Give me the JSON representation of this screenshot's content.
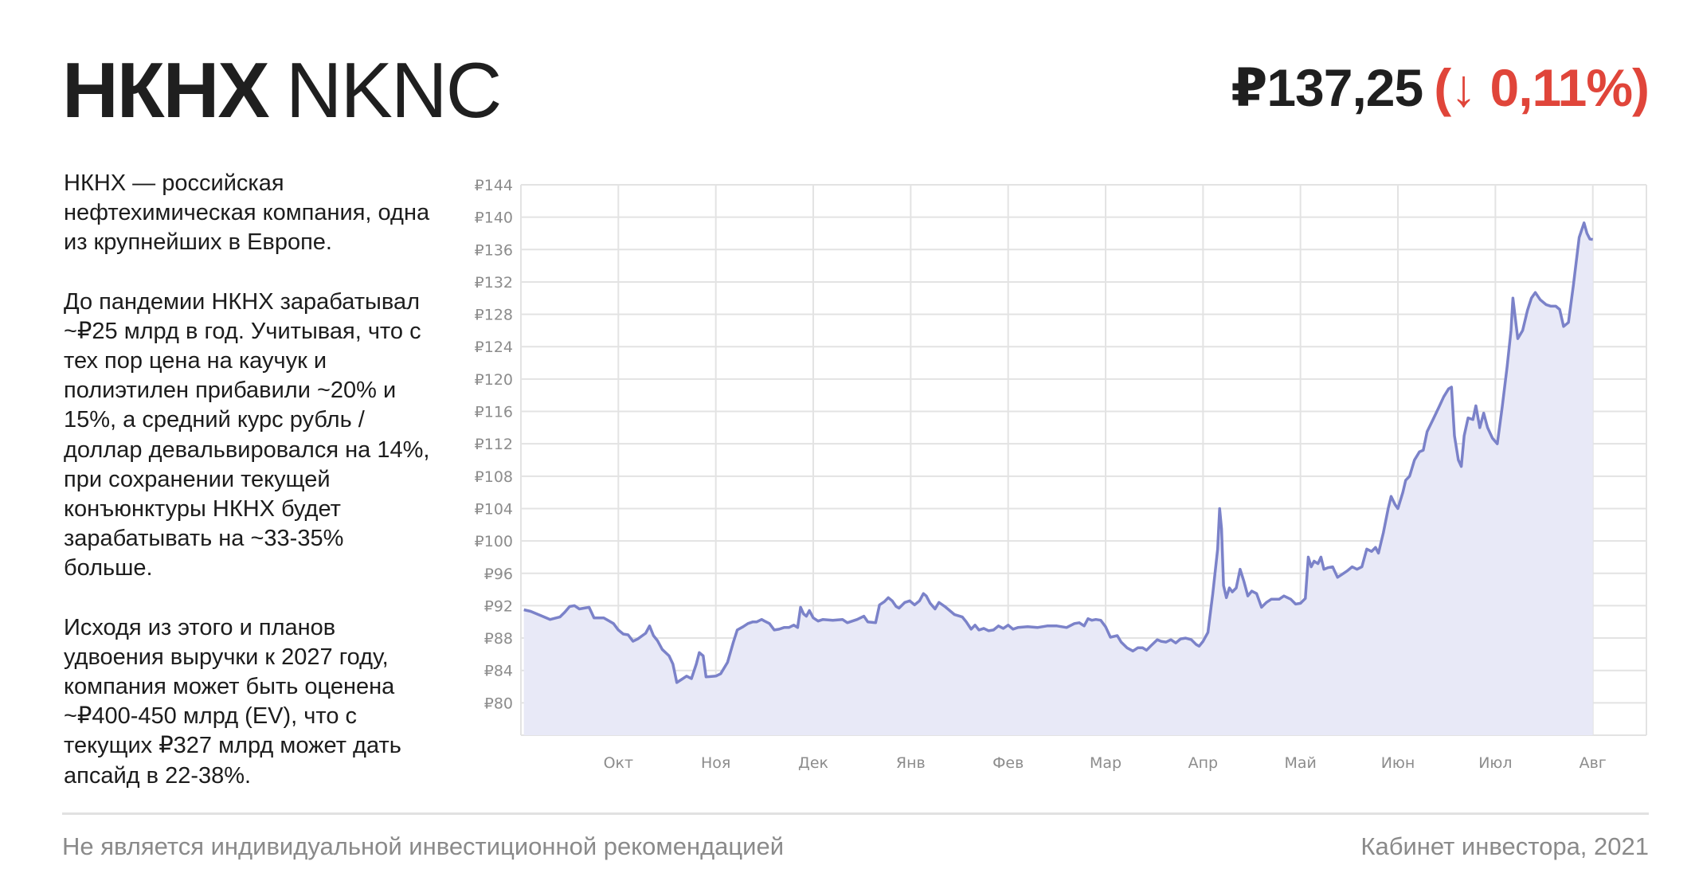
{
  "header": {
    "ticker_ru": "НКНХ",
    "ticker_en": "NKNC",
    "price": "₽137,25",
    "change": "(↓ 0,11%)"
  },
  "description": [
    "НКНХ — российская нефтехимическая компания, одна из крупнейших в Европе.",
    "До пандемии НКНХ зарабатывал ~₽25 млрд в год. Учитывая, что с тех пор цена на каучук и полиэтилен прибавили ~20% и 15%, а средний курс рубль / доллар девальвировался на 14%, при сохранении текущей конъюнктуры НКНХ будет зарабатывать на ~33-35% больше.",
    "Исходя из этого и планов удвоения выручки к 2027 году, компания может быть оценена ~₽400-450 млрд (EV), что с текущих ₽327 млрд может дать апсайд в 22-38%."
  ],
  "footer": {
    "disclaimer": "Не является индивидуальной инвестиционной рекомендацией",
    "source": "Кабинет инвестора, 2021"
  },
  "chart_data": {
    "type": "area",
    "ylim": [
      76,
      144
    ],
    "y_ticks": [
      80,
      84,
      88,
      92,
      96,
      100,
      104,
      108,
      112,
      116,
      120,
      124,
      128,
      132,
      136,
      140,
      144
    ],
    "y_tick_labels": [
      "₽80",
      "₽84",
      "₽88",
      "₽92",
      "₽96",
      "₽100",
      "₽104",
      "₽108",
      "₽112",
      "₽116",
      "₽120",
      "₽124",
      "₽128",
      "₽132",
      "₽136",
      "₽140",
      "₽144"
    ],
    "x_range": [
      0,
      11.55
    ],
    "x_ticks": [
      1,
      2,
      3,
      4,
      5,
      6,
      7,
      8,
      9,
      10,
      11
    ],
    "x_tick_labels": [
      "Окт",
      "Ноя",
      "Дек",
      "Янв",
      "Фев",
      "Мар",
      "Апр",
      "Май",
      "Июн",
      "Июл",
      "Авг"
    ],
    "grid": true,
    "line_color": "#7b82c9",
    "fill_color": "#e8e9f7",
    "points": [
      [
        0.03,
        91.5
      ],
      [
        0.1,
        91.3
      ],
      [
        0.2,
        90.8
      ],
      [
        0.3,
        90.3
      ],
      [
        0.4,
        90.6
      ],
      [
        0.45,
        91.2
      ],
      [
        0.5,
        91.9
      ],
      [
        0.55,
        92.0
      ],
      [
        0.6,
        91.6
      ],
      [
        0.7,
        91.8
      ],
      [
        0.75,
        90.5
      ],
      [
        0.85,
        90.5
      ],
      [
        0.95,
        89.8
      ],
      [
        1.0,
        89.0
      ],
      [
        1.05,
        88.5
      ],
      [
        1.1,
        88.4
      ],
      [
        1.15,
        87.6
      ],
      [
        1.2,
        87.9
      ],
      [
        1.28,
        88.6
      ],
      [
        1.32,
        89.5
      ],
      [
        1.36,
        88.3
      ],
      [
        1.4,
        87.7
      ],
      [
        1.45,
        86.6
      ],
      [
        1.52,
        85.8
      ],
      [
        1.56,
        84.8
      ],
      [
        1.6,
        82.5
      ],
      [
        1.65,
        82.9
      ],
      [
        1.7,
        83.3
      ],
      [
        1.75,
        83.0
      ],
      [
        1.8,
        84.8
      ],
      [
        1.83,
        86.2
      ],
      [
        1.87,
        85.8
      ],
      [
        1.9,
        83.2
      ],
      [
        2.0,
        83.3
      ],
      [
        2.05,
        83.6
      ],
      [
        2.12,
        85.0
      ],
      [
        2.18,
        87.5
      ],
      [
        2.22,
        89.0
      ],
      [
        2.28,
        89.4
      ],
      [
        2.33,
        89.8
      ],
      [
        2.38,
        90.0
      ],
      [
        2.42,
        90.0
      ],
      [
        2.47,
        90.3
      ],
      [
        2.5,
        90.1
      ],
      [
        2.55,
        89.8
      ],
      [
        2.6,
        89.0
      ],
      [
        2.65,
        89.1
      ],
      [
        2.7,
        89.3
      ],
      [
        2.75,
        89.3
      ],
      [
        2.8,
        89.6
      ],
      [
        2.84,
        89.3
      ],
      [
        2.87,
        91.8
      ],
      [
        2.9,
        91.0
      ],
      [
        2.93,
        90.7
      ],
      [
        2.96,
        91.4
      ],
      [
        3.0,
        90.5
      ],
      [
        3.05,
        90.1
      ],
      [
        3.1,
        90.3
      ],
      [
        3.2,
        90.2
      ],
      [
        3.3,
        90.3
      ],
      [
        3.35,
        89.9
      ],
      [
        3.45,
        90.3
      ],
      [
        3.52,
        90.7
      ],
      [
        3.56,
        90.0
      ],
      [
        3.64,
        89.9
      ],
      [
        3.68,
        92.1
      ],
      [
        3.73,
        92.5
      ],
      [
        3.77,
        93.0
      ],
      [
        3.81,
        92.6
      ],
      [
        3.85,
        91.9
      ],
      [
        3.88,
        91.7
      ],
      [
        3.94,
        92.4
      ],
      [
        3.99,
        92.6
      ],
      [
        4.04,
        92.1
      ],
      [
        4.09,
        92.6
      ],
      [
        4.13,
        93.5
      ],
      [
        4.16,
        93.2
      ],
      [
        4.2,
        92.3
      ],
      [
        4.25,
        91.6
      ],
      [
        4.29,
        92.4
      ],
      [
        4.35,
        91.9
      ],
      [
        4.4,
        91.4
      ],
      [
        4.45,
        90.9
      ],
      [
        4.53,
        90.6
      ],
      [
        4.57,
        90.0
      ],
      [
        4.62,
        89.1
      ],
      [
        4.66,
        89.6
      ],
      [
        4.7,
        89.0
      ],
      [
        4.75,
        89.2
      ],
      [
        4.8,
        88.9
      ],
      [
        4.85,
        89.0
      ],
      [
        4.9,
        89.5
      ],
      [
        4.95,
        89.2
      ],
      [
        5.0,
        89.6
      ],
      [
        5.05,
        89.1
      ],
      [
        5.1,
        89.3
      ],
      [
        5.2,
        89.4
      ],
      [
        5.3,
        89.3
      ],
      [
        5.4,
        89.5
      ],
      [
        5.5,
        89.5
      ],
      [
        5.6,
        89.3
      ],
      [
        5.68,
        89.8
      ],
      [
        5.73,
        89.9
      ],
      [
        5.78,
        89.5
      ],
      [
        5.82,
        90.4
      ],
      [
        5.86,
        90.2
      ],
      [
        5.9,
        90.3
      ],
      [
        5.95,
        90.2
      ],
      [
        6.0,
        89.4
      ],
      [
        6.05,
        88.1
      ],
      [
        6.12,
        88.3
      ],
      [
        6.16,
        87.5
      ],
      [
        6.22,
        86.8
      ],
      [
        6.28,
        86.4
      ],
      [
        6.33,
        86.8
      ],
      [
        6.38,
        86.8
      ],
      [
        6.42,
        86.5
      ],
      [
        6.47,
        87.1
      ],
      [
        6.53,
        87.8
      ],
      [
        6.57,
        87.6
      ],
      [
        6.62,
        87.5
      ],
      [
        6.67,
        87.8
      ],
      [
        6.72,
        87.4
      ],
      [
        6.77,
        87.9
      ],
      [
        6.82,
        88.0
      ],
      [
        6.88,
        87.8
      ],
      [
        6.93,
        87.2
      ],
      [
        6.96,
        87.0
      ],
      [
        7.0,
        87.6
      ],
      [
        7.05,
        88.7
      ],
      [
        7.1,
        93.5
      ],
      [
        7.15,
        99.0
      ],
      [
        7.17,
        104.0
      ],
      [
        7.19,
        101.5
      ],
      [
        7.21,
        94.5
      ],
      [
        7.24,
        93.0
      ],
      [
        7.27,
        94.2
      ],
      [
        7.3,
        93.7
      ],
      [
        7.34,
        94.2
      ],
      [
        7.38,
        96.5
      ],
      [
        7.42,
        95.0
      ],
      [
        7.46,
        93.2
      ],
      [
        7.5,
        93.8
      ],
      [
        7.55,
        93.5
      ],
      [
        7.6,
        91.8
      ],
      [
        7.65,
        92.4
      ],
      [
        7.7,
        92.8
      ],
      [
        7.78,
        92.8
      ],
      [
        7.83,
        93.2
      ],
      [
        7.9,
        92.8
      ],
      [
        7.95,
        92.2
      ],
      [
        8.0,
        92.3
      ],
      [
        8.05,
        92.9
      ],
      [
        8.08,
        98.0
      ],
      [
        8.11,
        96.8
      ],
      [
        8.14,
        97.5
      ],
      [
        8.18,
        97.2
      ],
      [
        8.21,
        98.0
      ],
      [
        8.24,
        96.5
      ],
      [
        8.28,
        96.7
      ],
      [
        8.33,
        96.8
      ],
      [
        8.38,
        95.5
      ],
      [
        8.43,
        95.9
      ],
      [
        8.48,
        96.3
      ],
      [
        8.53,
        96.8
      ],
      [
        8.58,
        96.5
      ],
      [
        8.63,
        96.8
      ],
      [
        8.68,
        99.0
      ],
      [
        8.73,
        98.7
      ],
      [
        8.77,
        99.2
      ],
      [
        8.8,
        98.5
      ],
      [
        8.85,
        101.0
      ],
      [
        8.9,
        104.0
      ],
      [
        8.93,
        105.5
      ],
      [
        8.97,
        104.5
      ],
      [
        9.0,
        104.0
      ],
      [
        9.05,
        106.0
      ],
      [
        9.08,
        107.5
      ],
      [
        9.12,
        108.0
      ],
      [
        9.17,
        110.0
      ],
      [
        9.22,
        111.0
      ],
      [
        9.26,
        111.2
      ],
      [
        9.3,
        113.5
      ],
      [
        9.36,
        115.0
      ],
      [
        9.42,
        116.5
      ],
      [
        9.47,
        117.8
      ],
      [
        9.52,
        118.8
      ],
      [
        9.55,
        119.0
      ],
      [
        9.58,
        113.0
      ],
      [
        9.62,
        110.0
      ],
      [
        9.65,
        109.2
      ],
      [
        9.68,
        113.0
      ],
      [
        9.72,
        115.2
      ],
      [
        9.77,
        115.0
      ],
      [
        9.8,
        116.7
      ],
      [
        9.84,
        114.0
      ],
      [
        9.88,
        115.8
      ],
      [
        9.92,
        114.0
      ],
      [
        9.97,
        112.7
      ],
      [
        10.02,
        112.0
      ],
      [
        10.07,
        116.5
      ],
      [
        10.12,
        121.5
      ],
      [
        10.16,
        126.0
      ],
      [
        10.18,
        130.0
      ],
      [
        10.2,
        128.0
      ],
      [
        10.23,
        125.0
      ],
      [
        10.28,
        126.0
      ],
      [
        10.33,
        128.5
      ],
      [
        10.37,
        130.0
      ],
      [
        10.41,
        130.7
      ],
      [
        10.46,
        129.8
      ],
      [
        10.52,
        129.2
      ],
      [
        10.57,
        129.0
      ],
      [
        10.62,
        129.0
      ],
      [
        10.66,
        128.6
      ],
      [
        10.7,
        126.5
      ],
      [
        10.75,
        127.0
      ],
      [
        10.8,
        131.5
      ],
      [
        10.86,
        137.5
      ],
      [
        10.91,
        139.3
      ],
      [
        10.94,
        138.0
      ],
      [
        10.97,
        137.3
      ],
      [
        11.0,
        137.25
      ]
    ]
  }
}
